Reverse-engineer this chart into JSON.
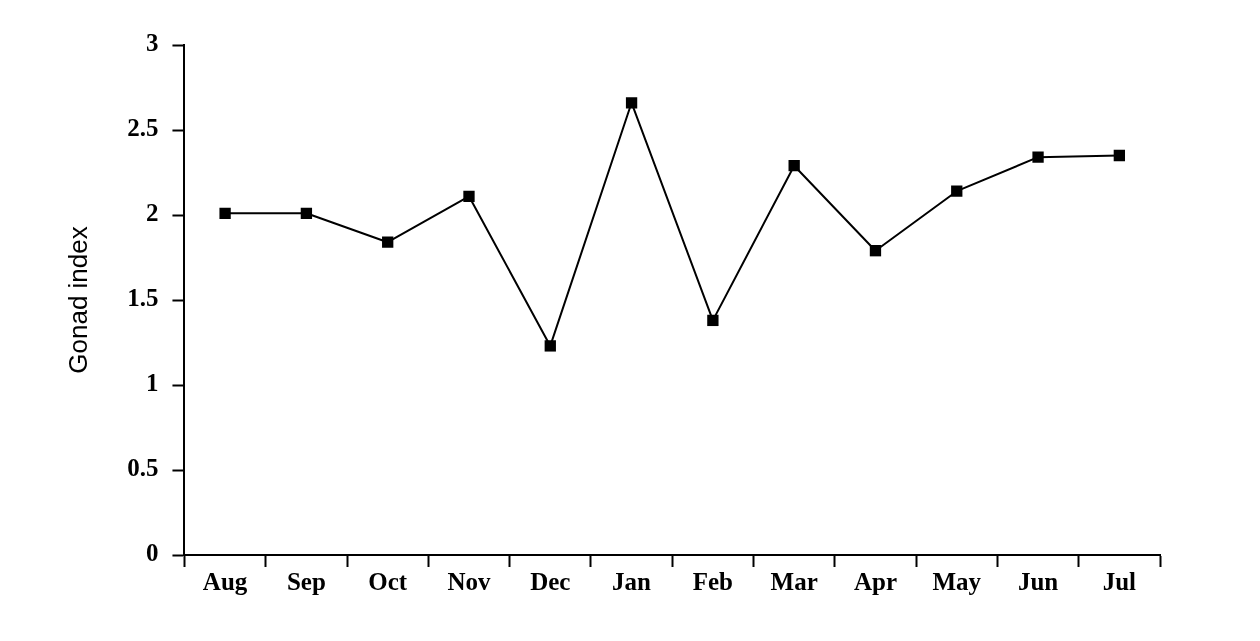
{
  "chart_data": {
    "type": "line",
    "ylabel": "Gonad index",
    "categories": [
      "Aug",
      "Sep",
      "Oct",
      "Nov",
      "Dec",
      "Jan",
      "Feb",
      "Mar",
      "Apr",
      "May",
      "Jun",
      "Jul"
    ],
    "series": [
      {
        "color": "#000000",
        "values": [
          2.01,
          2.01,
          1.84,
          2.11,
          1.23,
          2.66,
          1.38,
          2.29,
          1.79,
          2.14,
          2.34,
          2.35
        ]
      }
    ],
    "ylim": [
      0,
      3
    ],
    "yticks": [
      0,
      0.5,
      1,
      1.5,
      2,
      2.5,
      3
    ],
    "grid": false,
    "legend": false,
    "marker": "square",
    "line_style": "solid"
  }
}
